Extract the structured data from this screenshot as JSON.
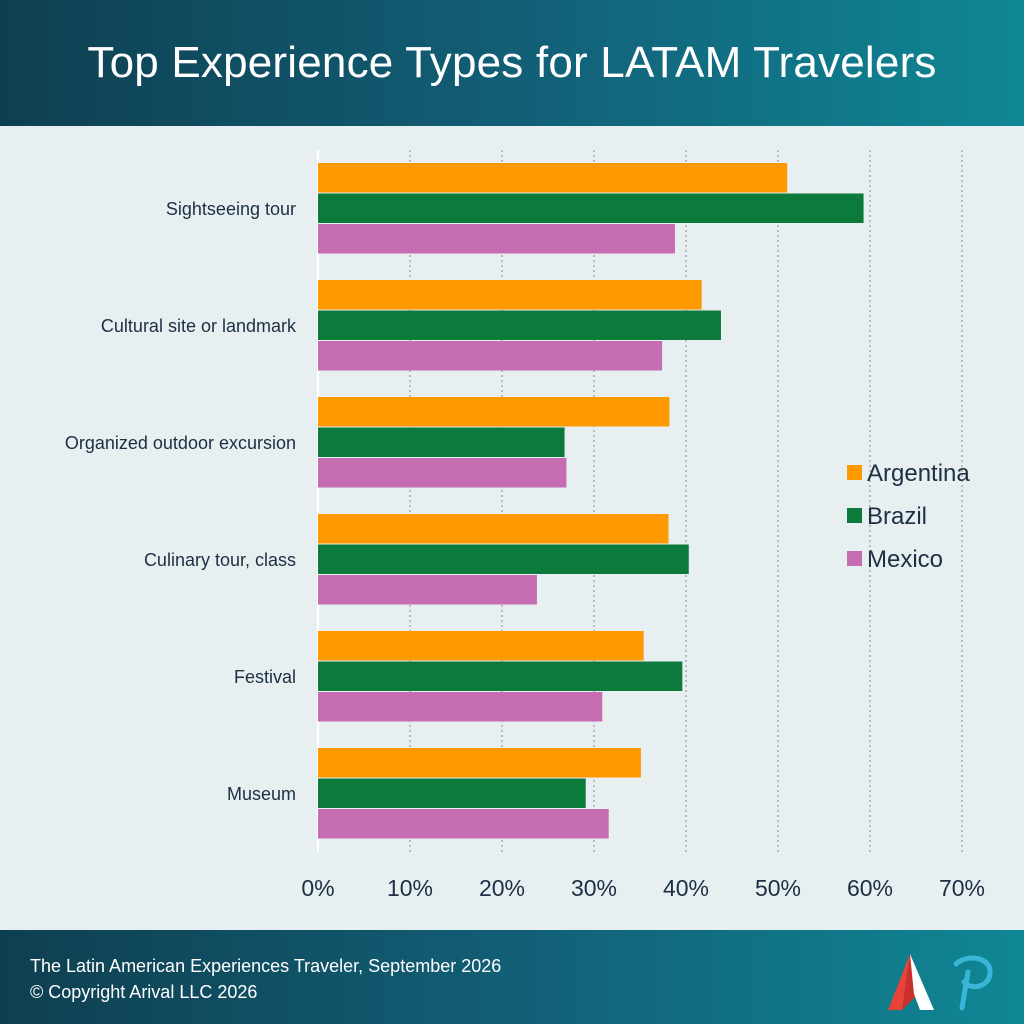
{
  "header": {
    "title": "Top Experience Types for LATAM Travelers"
  },
  "footer": {
    "source": "The Latin American Experiences Traveler, September 2026",
    "copyright": "© Copyright Arival LLC 2026"
  },
  "colors": {
    "header_bg": "#12627a",
    "argentina": "#ff9900",
    "brazil": "#0c7a3a",
    "mexico": "#c66db2",
    "background": "#e7eff0"
  },
  "chart_data": {
    "type": "bar",
    "orientation": "horizontal",
    "title": "Top Experience Types for LATAM Travelers",
    "categories": [
      "Sightseeing tour",
      "Cultural site or landmark",
      "Organized outdoor excursion",
      "Culinary tour, class",
      "Festival",
      "Museum"
    ],
    "series": [
      {
        "name": "Argentina",
        "color": "#ff9900",
        "values": [
          51,
          41.7,
          38.2,
          38.1,
          35.4,
          35.1
        ]
      },
      {
        "name": "Brazil",
        "color": "#0c7a3a",
        "values": [
          59.3,
          43.8,
          26.8,
          40.3,
          39.6,
          29.1
        ]
      },
      {
        "name": "Mexico",
        "color": "#c66db2",
        "values": [
          38.8,
          37.4,
          27,
          23.8,
          30.9,
          31.6
        ]
      }
    ],
    "xlim": [
      0,
      70
    ],
    "xticks": [
      0,
      10,
      20,
      30,
      40,
      50,
      60,
      70
    ],
    "xtick_labels": [
      "0%",
      "10%",
      "20%",
      "30%",
      "40%",
      "50%",
      "60%",
      "70%"
    ],
    "grid": "vertical dotted",
    "legend": "right"
  }
}
